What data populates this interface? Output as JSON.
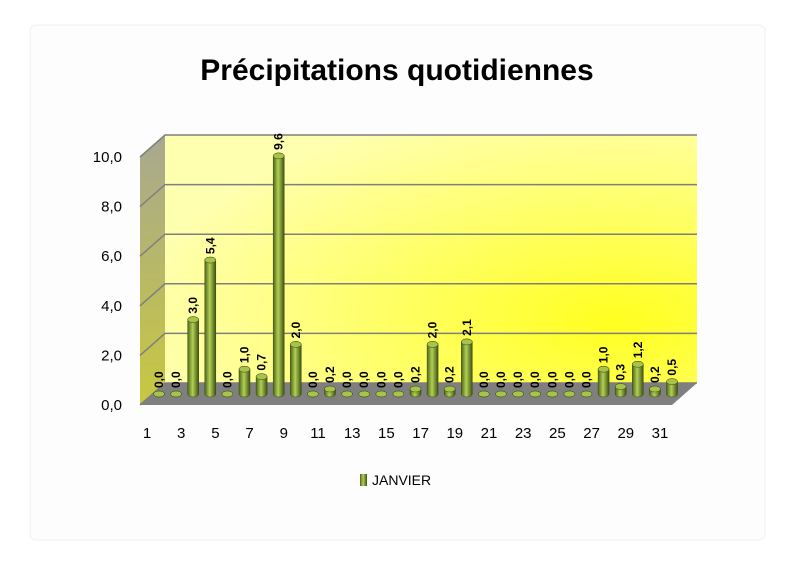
{
  "chart_data": {
    "type": "bar",
    "title": "Précipitations quotidiennes",
    "categories": [
      "1",
      null,
      "3",
      null,
      "5",
      null,
      "7",
      null,
      "9",
      null,
      "11",
      null,
      "13",
      null,
      "15",
      null,
      "17",
      null,
      "19",
      null,
      "21",
      null,
      "23",
      null,
      "25",
      null,
      "27",
      null,
      "29",
      null,
      "31"
    ],
    "series": [
      {
        "name": "JANVIER",
        "color": "#8aa833",
        "values": [
          0,
          0,
          3,
          5.4,
          0,
          1,
          0.7,
          9.6,
          2,
          0,
          0.2,
          0,
          0,
          0,
          0,
          0.2,
          2,
          0.2,
          2.1,
          0,
          0,
          0,
          0,
          0,
          0,
          0,
          1,
          0.3,
          1.2,
          0.2,
          0.5
        ],
        "value_labels": [
          "0,0",
          "0,0",
          "3,0",
          "5,4",
          "0,0",
          "1,0",
          "0,7",
          "9,6",
          "2,0",
          "0,0",
          "0,2",
          "0,0",
          "0,0",
          "0,0",
          "0,0",
          "0,2",
          "2,0",
          "0,2",
          "2,1",
          "0,0",
          "0,0",
          "0,0",
          "0,0",
          "0,0",
          "0,0",
          "0,0",
          "1,0",
          "0,3",
          "1,2",
          "0,2",
          "0,5"
        ]
      }
    ],
    "ylim": [
      0,
      10
    ],
    "yticks": [
      {
        "value": 0,
        "label": "0,0"
      },
      {
        "value": 2,
        "label": "2,0"
      },
      {
        "value": 4,
        "label": "4,0"
      },
      {
        "value": 6,
        "label": "6,0"
      },
      {
        "value": 8,
        "label": "8,0"
      },
      {
        "value": 10,
        "label": "10,0"
      }
    ],
    "grid": true,
    "legend": "bottom"
  }
}
